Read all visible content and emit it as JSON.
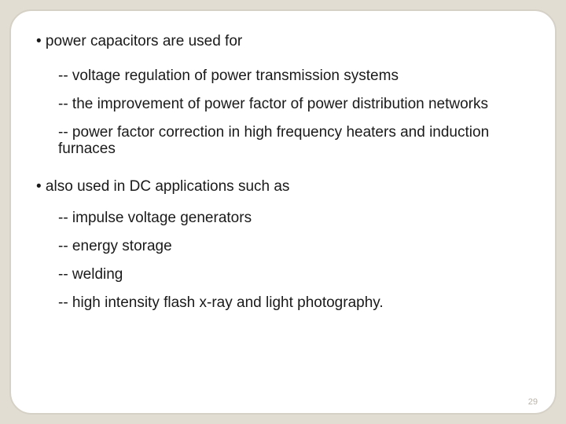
{
  "colors": {
    "bg": "#e2ddd3",
    "card_bg": "#ffffff",
    "card_border": "#d6d1c7",
    "text": "#1a1a1a",
    "muted": "#b9b4aa"
  },
  "bullets": {
    "main1": "• power capacitors are used for",
    "sub1a": "-- voltage regulation of power transmission systems",
    "sub1b": "-- the improvement of power factor of power distribution networks",
    "sub1c": "-- power factor correction in high frequency heaters and induction furnaces",
    "main2": "• also used in DC applications such as",
    "sub2a": "-- impulse voltage generators",
    "sub2b": "-- energy storage",
    "sub2c": "-- welding",
    "sub2d": "-- high intensity flash x-ray and light photography."
  },
  "page_number": "29"
}
